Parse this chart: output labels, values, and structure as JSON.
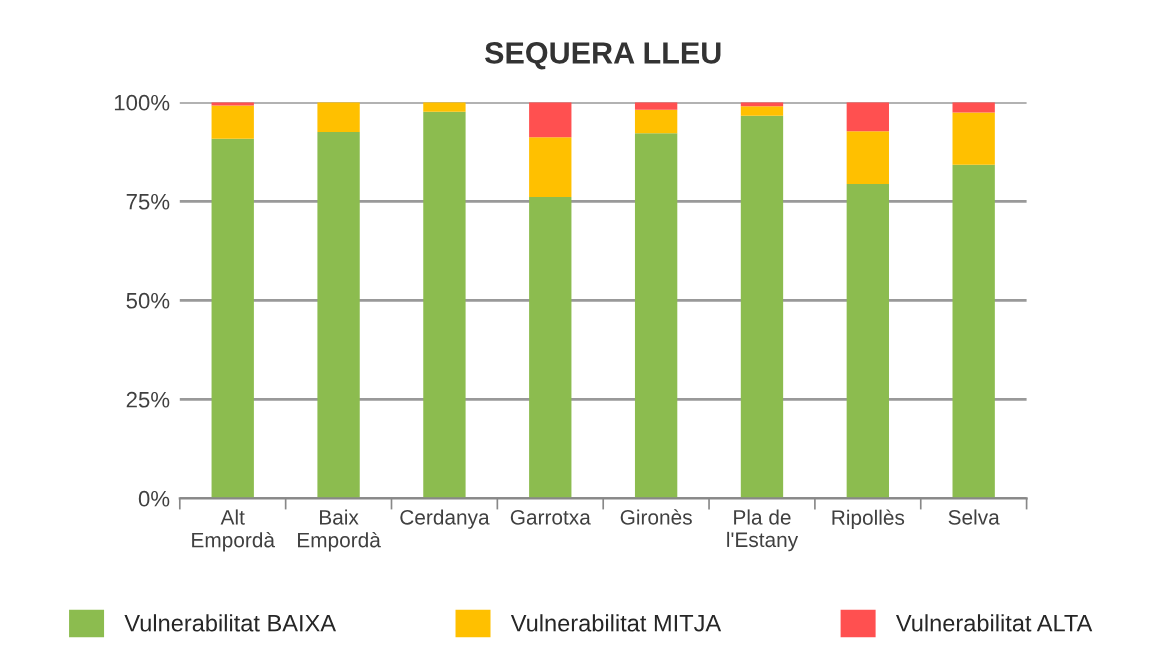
{
  "chart_data": {
    "type": "bar",
    "title": "SEQUERA LLEU",
    "stacked": true,
    "categories": [
      "Alt\nEmpordà",
      "Baix\nEmpordà",
      "Cerdanya",
      "Garrotxa",
      "Gironès",
      "Pla de\nl'Estany",
      "Ripollès",
      "Selva"
    ],
    "series": [
      {
        "name": "Vulnerabilitat BAIXA",
        "color": "#8cbc4f",
        "values": [
          90.8,
          92.5,
          97.6,
          76.1,
          92.2,
          96.6,
          79.4,
          84.2
        ]
      },
      {
        "name": "Vulnerabilitat MITJA",
        "color": "#ffc000",
        "values": [
          8.4,
          7.5,
          2.4,
          15.1,
          5.9,
          2.4,
          13.3,
          13.2
        ]
      },
      {
        "name": "Vulnerabilitat ALTA",
        "color": "#ff5050",
        "values": [
          0.8,
          0,
          0,
          8.8,
          1.9,
          1.0,
          7.3,
          2.6
        ]
      }
    ],
    "ylim": [
      0,
      100
    ],
    "yticks": [
      {
        "value": 0,
        "label": "0%"
      },
      {
        "value": 25,
        "label": "25%"
      },
      {
        "value": 50,
        "label": "50%"
      },
      {
        "value": 75,
        "label": "75%"
      },
      {
        "value": 100,
        "label": "100%"
      }
    ],
    "grid": "y",
    "legend": "bottom"
  }
}
